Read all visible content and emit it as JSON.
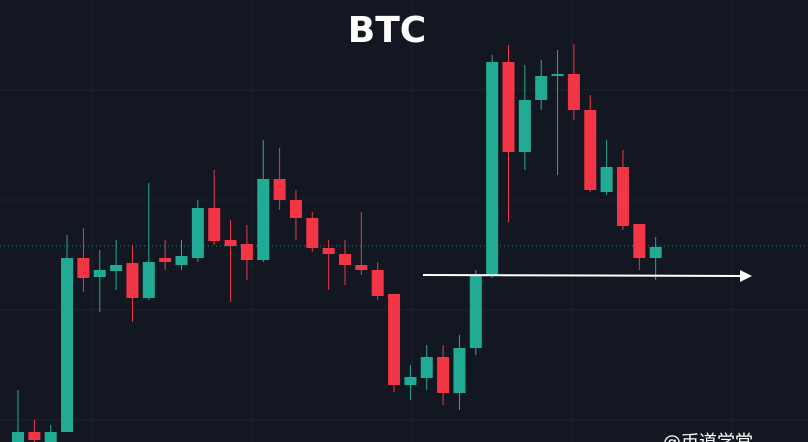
{
  "chart_data": {
    "type": "candlestick",
    "title": "BTC",
    "watermark": "@币道学堂",
    "ylim": [
      0,
      442
    ],
    "up_color": "#22ab94",
    "down_color": "#f23645",
    "price_line": 196,
    "open": [
      0,
      10,
      0,
      10,
      184,
      165,
      171,
      179,
      144,
      184,
      177,
      184,
      234,
      202,
      198,
      182,
      263,
      242,
      224,
      194,
      188,
      177,
      172,
      148,
      57,
      64,
      85,
      49,
      94,
      166,
      380,
      290,
      342,
      366,
      368,
      332,
      250,
      275,
      218,
      184
    ],
    "high": [
      52,
      22,
      17,
      207,
      214,
      192,
      202,
      197,
      259,
      202,
      202,
      242,
      272,
      222,
      217,
      302,
      294,
      252,
      230,
      202,
      202,
      230,
      180,
      148,
      77,
      97,
      97,
      107,
      172,
      387,
      397,
      377,
      382,
      392,
      398,
      347,
      302,
      292,
      218,
      205
    ],
    "low": [
      0,
      0,
      0,
      10,
      150,
      130,
      152,
      120,
      142,
      172,
      172,
      180,
      197,
      140,
      162,
      180,
      232,
      202,
      190,
      152,
      157,
      167,
      142,
      50,
      42,
      52,
      37,
      32,
      87,
      164,
      220,
      272,
      332,
      267,
      322,
      250,
      247,
      212,
      172,
      162
    ],
    "close": [
      10,
      2,
      10,
      184,
      164,
      172,
      177,
      144,
      180,
      180,
      186,
      234,
      201,
      196,
      182,
      263,
      242,
      224,
      194,
      188,
      177,
      172,
      146,
      57,
      65,
      85,
      49,
      94,
      166,
      380,
      290,
      342,
      366,
      368,
      332,
      252,
      275,
      216,
      184,
      195
    ]
  }
}
